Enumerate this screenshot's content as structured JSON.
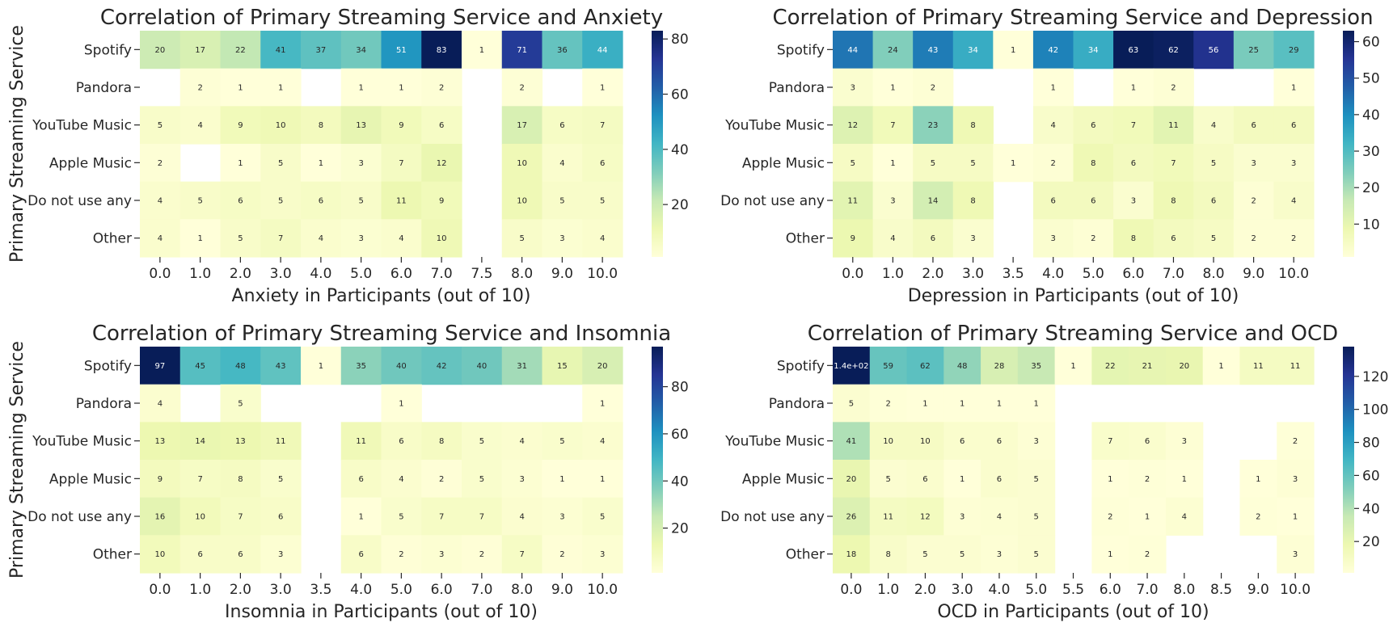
{
  "colormap": "YlGnBu",
  "chart_data": [
    {
      "type": "heatmap",
      "title": "Correlation of Primary Streaming Service and Anxiety",
      "xlabel": "Anxiety in Participants (out of 10)",
      "ylabel": "Primary Streaming Service",
      "x": [
        "0.0",
        "1.0",
        "2.0",
        "3.0",
        "4.0",
        "5.0",
        "6.0",
        "7.0",
        "7.5",
        "8.0",
        "9.0",
        "10.0"
      ],
      "y": [
        "Spotify",
        "Pandora",
        "YouTube Music",
        "Apple Music",
        "Do not use any",
        "Other"
      ],
      "values": [
        [
          20,
          17,
          22,
          41,
          37,
          34,
          51,
          83,
          1,
          71,
          36,
          44
        ],
        [
          null,
          2,
          1,
          1,
          null,
          1,
          1,
          2,
          null,
          2,
          null,
          1
        ],
        [
          5,
          4,
          9,
          10,
          8,
          13,
          9,
          6,
          null,
          17,
          6,
          7
        ],
        [
          2,
          null,
          1,
          5,
          1,
          3,
          7,
          12,
          null,
          10,
          4,
          6
        ],
        [
          4,
          5,
          6,
          5,
          6,
          5,
          11,
          9,
          null,
          10,
          5,
          5
        ],
        [
          4,
          1,
          5,
          7,
          4,
          3,
          4,
          10,
          null,
          5,
          3,
          4
        ]
      ],
      "vmin": 1,
      "vmax": 83,
      "colorbar_ticks": [
        20,
        40,
        60,
        80
      ]
    },
    {
      "type": "heatmap",
      "title": "Correlation of Primary Streaming Service and Depression",
      "xlabel": "Depression in Participants (out of 10)",
      "ylabel": "",
      "x": [
        "0.0",
        "1.0",
        "2.0",
        "3.0",
        "3.5",
        "4.0",
        "5.0",
        "6.0",
        "7.0",
        "8.0",
        "9.0",
        "10.0"
      ],
      "y": [
        "Spotify",
        "Pandora",
        "YouTube Music",
        "Apple Music",
        "Do not use any",
        "Other"
      ],
      "values": [
        [
          44,
          24,
          43,
          34,
          1,
          42,
          34,
          63,
          62,
          56,
          25,
          29
        ],
        [
          3,
          1,
          2,
          null,
          null,
          1,
          null,
          1,
          2,
          null,
          null,
          1
        ],
        [
          12,
          7,
          23,
          8,
          null,
          4,
          6,
          7,
          11,
          4,
          6,
          6
        ],
        [
          5,
          1,
          5,
          5,
          1,
          2,
          8,
          6,
          7,
          5,
          3,
          3
        ],
        [
          11,
          3,
          14,
          8,
          null,
          6,
          6,
          3,
          8,
          6,
          2,
          4
        ],
        [
          9,
          4,
          6,
          3,
          null,
          3,
          2,
          8,
          6,
          5,
          2,
          2
        ]
      ],
      "vmin": 1,
      "vmax": 63,
      "colorbar_ticks": [
        10,
        20,
        30,
        40,
        50,
        60
      ]
    },
    {
      "type": "heatmap",
      "title": "Correlation of Primary Streaming Service and Insomnia",
      "xlabel": "Insomnia in Participants (out of 10)",
      "ylabel": "Primary Streaming Service",
      "x": [
        "0.0",
        "1.0",
        "2.0",
        "3.0",
        "3.5",
        "4.0",
        "5.0",
        "6.0",
        "7.0",
        "8.0",
        "9.0",
        "10.0"
      ],
      "y": [
        "Spotify",
        "Pandora",
        "YouTube Music",
        "Apple Music",
        "Do not use any",
        "Other"
      ],
      "values": [
        [
          97,
          45,
          48,
          43,
          1,
          35,
          40,
          42,
          40,
          31,
          15,
          20
        ],
        [
          4,
          null,
          5,
          null,
          null,
          null,
          1,
          null,
          null,
          null,
          null,
          1
        ],
        [
          13,
          14,
          13,
          11,
          null,
          11,
          6,
          8,
          5,
          4,
          5,
          4
        ],
        [
          9,
          7,
          8,
          5,
          null,
          6,
          4,
          2,
          5,
          3,
          1,
          1
        ],
        [
          16,
          10,
          7,
          6,
          null,
          1,
          5,
          7,
          7,
          4,
          3,
          5
        ],
        [
          10,
          6,
          6,
          3,
          null,
          6,
          2,
          3,
          2,
          7,
          2,
          3
        ]
      ],
      "vmin": 1,
      "vmax": 97,
      "colorbar_ticks": [
        20,
        40,
        60,
        80
      ]
    },
    {
      "type": "heatmap",
      "title": "Correlation of Primary Streaming Service and OCD",
      "xlabel": "OCD in Participants (out of 10)",
      "ylabel": "",
      "x": [
        "0.0",
        "1.0",
        "2.0",
        "3.0",
        "4.0",
        "5.0",
        "5.5",
        "6.0",
        "7.0",
        "8.0",
        "8.5",
        "9.0",
        "10.0"
      ],
      "y": [
        "Spotify",
        "Pandora",
        "YouTube Music",
        "Apple Music",
        "Do not use any",
        "Other"
      ],
      "values": [
        [
          138,
          59,
          62,
          48,
          28,
          35,
          1,
          22,
          21,
          20,
          1,
          11,
          11
        ],
        [
          5,
          2,
          1,
          1,
          1,
          1,
          null,
          null,
          null,
          null,
          null,
          null,
          null
        ],
        [
          41,
          10,
          10,
          6,
          6,
          3,
          null,
          7,
          6,
          3,
          null,
          null,
          2
        ],
        [
          20,
          5,
          6,
          1,
          6,
          5,
          null,
          1,
          2,
          1,
          null,
          1,
          3
        ],
        [
          26,
          11,
          12,
          3,
          4,
          5,
          null,
          2,
          1,
          4,
          null,
          2,
          1
        ],
        [
          18,
          8,
          5,
          5,
          3,
          5,
          null,
          1,
          2,
          null,
          null,
          null,
          3
        ]
      ],
      "annotation_overrides": {
        "0,0": "1.4e+02"
      },
      "vmin": 1,
      "vmax": 138,
      "colorbar_ticks": [
        20,
        40,
        60,
        80,
        100,
        120
      ]
    }
  ]
}
